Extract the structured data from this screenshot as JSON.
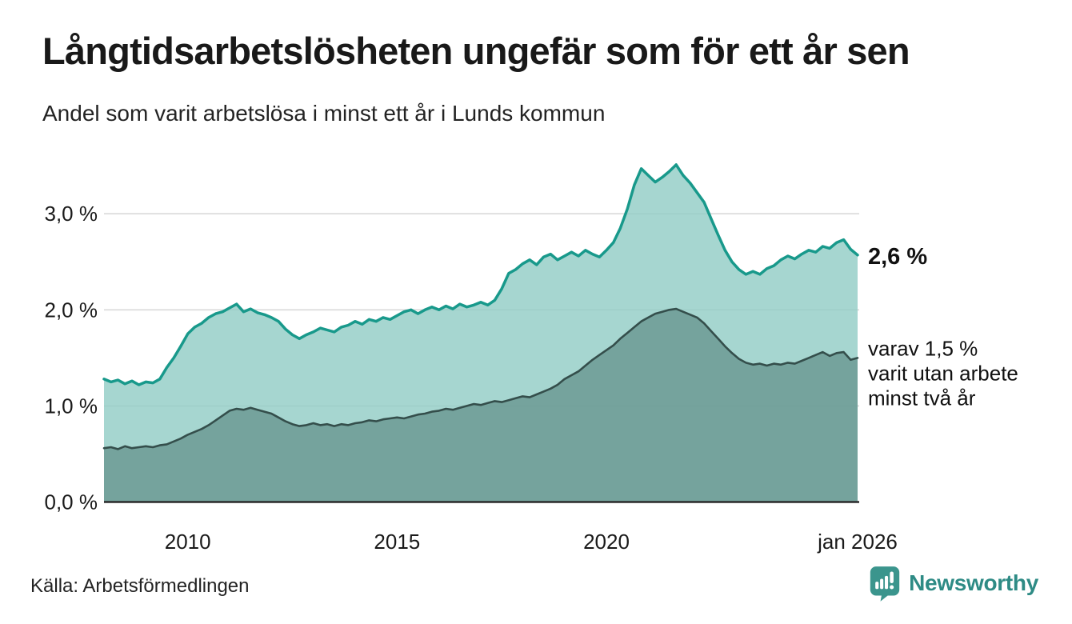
{
  "title": "Långtidsarbetslösheten ungefär som för ett år sen",
  "subtitle": "Andel som varit arbetslösa i minst ett år i Lunds kommun",
  "source": "Källa: Arbetsförmedlingen",
  "branding": {
    "name": "Newsworthy",
    "icon": "newsworthy-bubble-chart-icon",
    "color": "#2e8b85",
    "icon_color": "#3b958d"
  },
  "annotations": {
    "latest_total": "2,6 %",
    "two_year_note_lines": [
      "varav 1,5 %",
      "varit utan arbete",
      "minst två år"
    ]
  },
  "colors": {
    "top_line": "#18998b",
    "top_fill": "#92cdc6",
    "bottom_line": "#344e4b",
    "bottom_fill": "#6a9791",
    "gridline": "#d9d9d9",
    "axis_line": "#2b2b2b",
    "label": "#1a1a1a"
  },
  "chart_data": {
    "type": "area",
    "title": "Långtidsarbetslösheten ungefär som för ett år sen",
    "subtitle": "Andel som varit arbetslösa i minst ett år i Lunds kommun",
    "unit": "%",
    "x_start": 2008.0,
    "x_end": 2026.0,
    "x_step_years": 0.1666667,
    "ylim": [
      0,
      3.6
    ],
    "grid": true,
    "y_ticks": [
      {
        "value": 0,
        "label": "0,0 %"
      },
      {
        "value": 1,
        "label": "1,0 %"
      },
      {
        "value": 2,
        "label": "2,0 %"
      },
      {
        "value": 3,
        "label": "3,0 %"
      }
    ],
    "x_ticks": [
      {
        "value": 2010.0,
        "label": "2010"
      },
      {
        "value": 2015.0,
        "label": "2015"
      },
      {
        "value": 2020.0,
        "label": "2020"
      },
      {
        "value": 2026.0,
        "label": "jan 2026"
      }
    ],
    "series": [
      {
        "name": "Andel arbetslösa minst ett år",
        "latest_value": 2.6,
        "values": [
          1.28,
          1.25,
          1.27,
          1.23,
          1.26,
          1.22,
          1.25,
          1.24,
          1.28,
          1.4,
          1.5,
          1.62,
          1.75,
          1.82,
          1.86,
          1.92,
          1.96,
          1.98,
          2.02,
          2.06,
          1.98,
          2.01,
          1.97,
          1.95,
          1.92,
          1.88,
          1.8,
          1.74,
          1.7,
          1.74,
          1.77,
          1.81,
          1.79,
          1.77,
          1.82,
          1.84,
          1.88,
          1.85,
          1.9,
          1.88,
          1.92,
          1.9,
          1.94,
          1.98,
          2.0,
          1.96,
          2.0,
          2.03,
          2.0,
          2.04,
          2.01,
          2.06,
          2.03,
          2.05,
          2.08,
          2.05,
          2.1,
          2.22,
          2.38,
          2.42,
          2.48,
          2.52,
          2.47,
          2.55,
          2.58,
          2.52,
          2.56,
          2.6,
          2.56,
          2.62,
          2.58,
          2.55,
          2.62,
          2.7,
          2.85,
          3.05,
          3.3,
          3.47,
          3.4,
          3.33,
          3.38,
          3.44,
          3.51,
          3.4,
          3.32,
          3.22,
          3.12,
          2.95,
          2.78,
          2.62,
          2.5,
          2.42,
          2.37,
          2.4,
          2.37,
          2.43,
          2.46,
          2.52,
          2.56,
          2.53,
          2.58,
          2.62,
          2.6,
          2.66,
          2.64,
          2.7,
          2.73,
          2.63,
          2.57
        ]
      },
      {
        "name": "Andel arbetslösa minst två år",
        "latest_value": 1.5,
        "values": [
          0.56,
          0.57,
          0.55,
          0.58,
          0.56,
          0.57,
          0.58,
          0.57,
          0.59,
          0.6,
          0.63,
          0.66,
          0.7,
          0.73,
          0.76,
          0.8,
          0.85,
          0.9,
          0.95,
          0.97,
          0.96,
          0.98,
          0.96,
          0.94,
          0.92,
          0.88,
          0.84,
          0.81,
          0.79,
          0.8,
          0.82,
          0.8,
          0.81,
          0.79,
          0.81,
          0.8,
          0.82,
          0.83,
          0.85,
          0.84,
          0.86,
          0.87,
          0.88,
          0.87,
          0.89,
          0.91,
          0.92,
          0.94,
          0.95,
          0.97,
          0.96,
          0.98,
          1.0,
          1.02,
          1.01,
          1.03,
          1.05,
          1.04,
          1.06,
          1.08,
          1.1,
          1.09,
          1.12,
          1.15,
          1.18,
          1.22,
          1.28,
          1.32,
          1.36,
          1.42,
          1.48,
          1.53,
          1.58,
          1.63,
          1.7,
          1.76,
          1.82,
          1.88,
          1.92,
          1.96,
          1.98,
          2.0,
          2.01,
          1.98,
          1.95,
          1.92,
          1.86,
          1.78,
          1.7,
          1.62,
          1.55,
          1.49,
          1.45,
          1.43,
          1.44,
          1.42,
          1.44,
          1.43,
          1.45,
          1.44,
          1.47,
          1.5,
          1.53,
          1.56,
          1.52,
          1.55,
          1.56,
          1.48,
          1.5
        ]
      }
    ],
    "legend_position": "annotated-right"
  }
}
